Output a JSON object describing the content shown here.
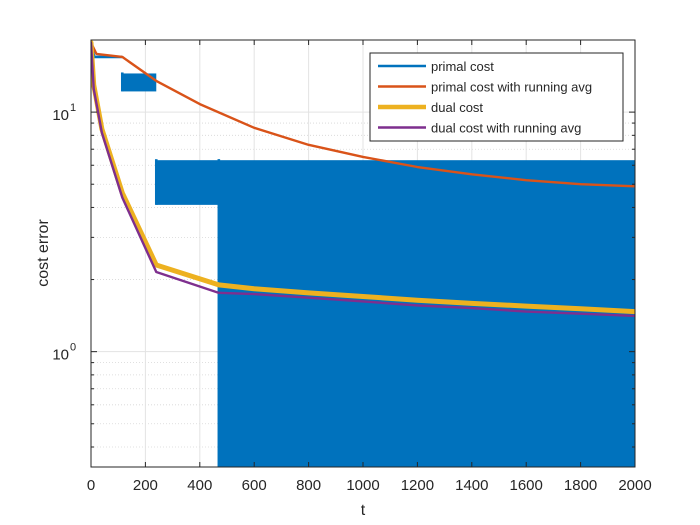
{
  "chart_data": {
    "type": "line",
    "xlabel": "t",
    "ylabel": "cost error",
    "xlim": [
      0,
      2000
    ],
    "ylim": [
      0.33,
      20
    ],
    "yscale": "log",
    "grid": true,
    "minor_grid": true,
    "legend_placement": "top-right",
    "x_ticks": [
      0,
      200,
      400,
      600,
      800,
      1000,
      1200,
      1400,
      1600,
      1800,
      2000
    ],
    "x_tick_labels": [
      "0",
      "200",
      "400",
      "600",
      "800",
      "1000",
      "1200",
      "1400",
      "1600",
      "1800",
      "2000"
    ],
    "y_ticks": [
      1,
      10
    ],
    "y_tick_labels": [
      {
        "base": "10",
        "exp": "0"
      },
      {
        "base": "10",
        "exp": "1"
      }
    ],
    "series": [
      {
        "name": "primal cost",
        "color": "#0072BD",
        "style": "oscillating-band",
        "segments": [
          {
            "x": [
              0,
              12
            ],
            "y": [
              19.5,
              17
            ]
          },
          {
            "x": [
              12,
              115
            ],
            "low": 17,
            "high": 17
          },
          {
            "x": [
              115,
              240
            ],
            "low": 12.2,
            "high": 14.5
          },
          {
            "x": [
              240,
              470
            ],
            "low": 4.1,
            "high": 6.3
          },
          {
            "x": [
              470,
              2000
            ],
            "low": 0.33,
            "high": 6.3
          }
        ]
      },
      {
        "name": "primal cost with running avg",
        "color": "#D95319",
        "x": [
          0,
          20,
          115,
          240,
          400,
          600,
          800,
          1000,
          1200,
          1400,
          1600,
          1800,
          2000
        ],
        "y": [
          19.5,
          17.5,
          17,
          13.5,
          10.8,
          8.6,
          7.3,
          6.5,
          5.9,
          5.5,
          5.2,
          5.0,
          4.9
        ]
      },
      {
        "name": "dual cost",
        "color": "#EDB120",
        "x": [
          0,
          10,
          40,
          115,
          240,
          470,
          600,
          800,
          1000,
          1200,
          1400,
          1600,
          1800,
          2000
        ],
        "y": [
          19.5,
          13,
          8.5,
          4.6,
          2.3,
          1.9,
          1.83,
          1.76,
          1.7,
          1.64,
          1.59,
          1.55,
          1.51,
          1.47
        ]
      },
      {
        "name": "dual cost with running avg",
        "color": "#7E2F8E",
        "x": [
          0,
          10,
          40,
          115,
          240,
          470,
          600,
          800,
          1000,
          1200,
          1400,
          1600,
          1800,
          2000
        ],
        "y": [
          19.5,
          12.5,
          8.2,
          4.4,
          2.15,
          1.76,
          1.74,
          1.68,
          1.62,
          1.56,
          1.52,
          1.47,
          1.44,
          1.41
        ]
      }
    ]
  }
}
